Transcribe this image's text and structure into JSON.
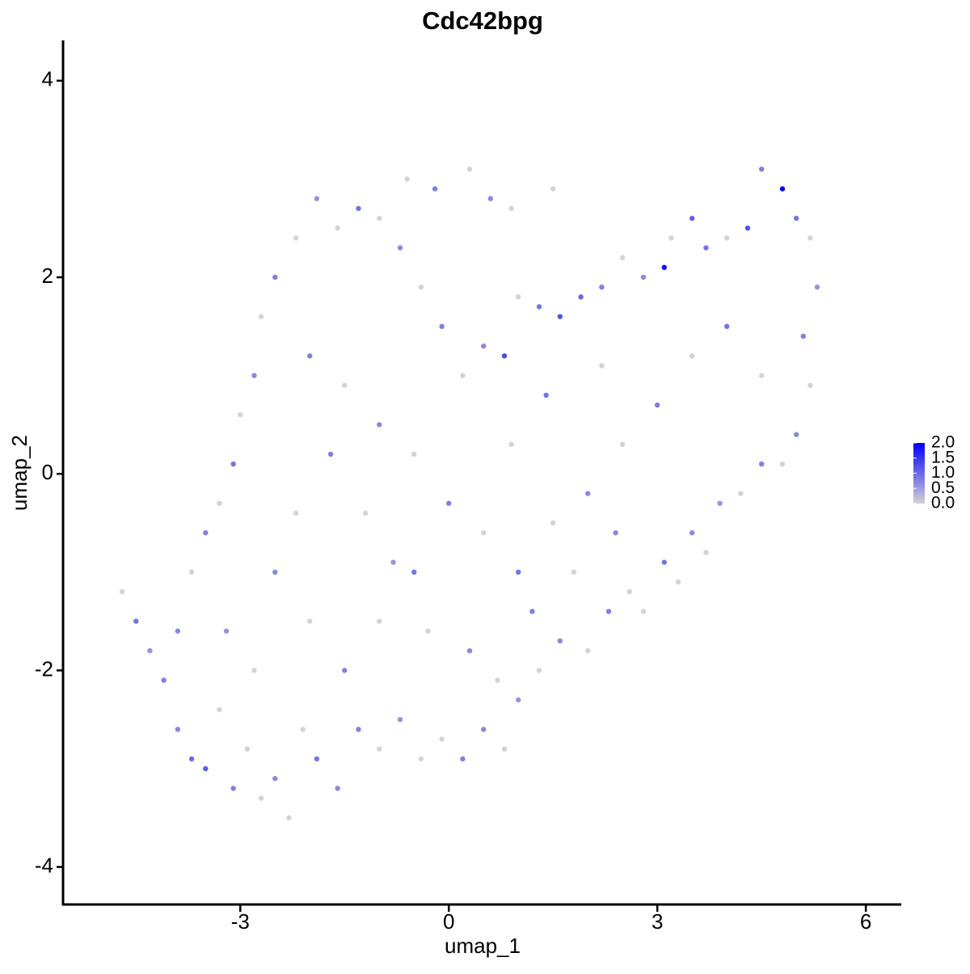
{
  "chart_data": {
    "type": "scatter",
    "title": "Cdc42bpg",
    "x_label": "umap_1",
    "y_label": "umap_2",
    "xlim": [
      -5.55,
      6.51
    ],
    "ylim": [
      -4.39,
      4.41
    ],
    "xticks": [
      -3,
      0,
      3,
      6
    ],
    "yticks": [
      -4,
      -2,
      0,
      2,
      4
    ],
    "colorbar": {
      "lim": [
        0,
        2
      ],
      "colors": [
        "#d3d3d3",
        "#0000ff"
      ],
      "ticks": [
        {
          "value": 0,
          "label": "0.0"
        },
        {
          "value": 0.5,
          "label": "0.5"
        },
        {
          "value": 1,
          "label": "1.0"
        },
        {
          "value": 1.5,
          "label": "1.5"
        },
        {
          "value": 2,
          "label": "2.0"
        }
      ]
    },
    "series": [
      {
        "x": [
          -4.7,
          -4.5,
          -4.3,
          -4.1,
          -3.9,
          -3.7,
          -3.5,
          -3.3,
          -3.1,
          -2.9,
          -2.7,
          -2.5,
          -2.3,
          -2.1,
          -1.9,
          -1.6,
          -1.3,
          -1.0,
          -0.7,
          -0.4,
          -0.1,
          0.2,
          0.5,
          0.8,
          1.0,
          1.3,
          1.6,
          2.0,
          2.3,
          2.6,
          2.8,
          3.1,
          3.3,
          3.5,
          3.7,
          3.9,
          4.2,
          4.5,
          4.8,
          5.0,
          5.2,
          5.1,
          5.3,
          5.2,
          5.0,
          4.8,
          4.5,
          4.3,
          4.0,
          3.7,
          3.5,
          3.2,
          3.1,
          2.8,
          2.5,
          2.2,
          1.9,
          1.6,
          1.3,
          1.0,
          0.8,
          0.5,
          0.2,
          -0.1,
          -0.4,
          -0.7,
          -1.0,
          -1.3,
          -1.6,
          -1.9,
          -2.2,
          -2.5,
          -2.7,
          -2.8,
          -3.0,
          -3.1,
          -3.3,
          -3.5,
          -3.7,
          -3.9,
          -0.6,
          -0.2,
          0.3,
          0.6,
          0.9,
          1.5,
          -2.0,
          -1.5,
          -1.0,
          -0.5,
          0.0,
          0.5,
          1.0,
          1.5,
          2.0,
          2.5,
          3.0,
          3.5,
          4.0,
          4.5,
          -2.5,
          -2.0,
          -1.5,
          -1.0,
          -0.5,
          -2.8,
          -3.2,
          -2.2,
          -1.7,
          -1.2,
          -0.8,
          -0.3,
          0.3,
          0.7,
          1.2,
          1.8,
          2.4,
          0.9,
          1.4,
          2.2
        ],
        "values": [
          -1.2,
          -1.5,
          -1.8,
          -2.1,
          -2.6,
          -2.9,
          -3.0,
          -2.4,
          -3.2,
          -2.8,
          -3.3,
          -3.1,
          -3.5,
          -2.6,
          -2.9,
          -3.2,
          -2.6,
          -2.8,
          -2.5,
          -2.9,
          -2.7,
          -2.9,
          -2.6,
          -2.8,
          -2.3,
          -2.0,
          -1.7,
          -1.8,
          -1.4,
          -1.2,
          -1.4,
          -0.9,
          -1.1,
          -0.6,
          -0.8,
          -0.3,
          -0.2,
          0.1,
          0.1,
          0.4,
          0.9,
          1.4,
          1.9,
          2.4,
          2.6,
          2.9,
          3.1,
          2.5,
          2.4,
          2.3,
          2.6,
          2.4,
          2.1,
          2.0,
          2.2,
          1.9,
          1.8,
          1.6,
          1.7,
          1.8,
          1.2,
          1.3,
          1.0,
          1.5,
          1.9,
          2.3,
          2.6,
          2.7,
          2.5,
          2.8,
          2.4,
          2.0,
          1.6,
          1.0,
          0.6,
          0.1,
          -0.3,
          -0.6,
          -1.0,
          -1.6,
          3.0,
          2.9,
          3.1,
          2.8,
          2.7,
          2.9,
          1.2,
          0.9,
          0.5,
          0.2,
          -0.3,
          -0.6,
          -1.0,
          -0.5,
          -0.2,
          0.3,
          0.7,
          1.2,
          1.5,
          1.0,
          -1.0,
          -1.5,
          -2.0,
          -1.5,
          -1.0,
          -2.0,
          -1.6,
          -0.4,
          0.2,
          -0.4,
          -0.9,
          -1.6,
          -1.8,
          -2.1,
          -1.4,
          -1.0,
          -0.6,
          0.3,
          0.8,
          1.1
        ],
        "expression": [
          0,
          0.9,
          0.6,
          0.8,
          0.7,
          1.0,
          1.1,
          0,
          0.8,
          0,
          0,
          0.7,
          0,
          0,
          0.9,
          0.7,
          0.8,
          0,
          0.6,
          0,
          0,
          0.8,
          0.7,
          0,
          0.6,
          0,
          0.7,
          0,
          0.8,
          0,
          0,
          0.9,
          0,
          0.7,
          0,
          0.6,
          0,
          0.8,
          0,
          0.7,
          0,
          0.8,
          0.6,
          0,
          0.9,
          2.0,
          0.8,
          1.2,
          0,
          0.9,
          1.1,
          0,
          1.9,
          0.7,
          0,
          0.8,
          1.0,
          1.2,
          0.9,
          0,
          1.3,
          0.7,
          0,
          0.8,
          0,
          0.7,
          0,
          0.9,
          0,
          0.6,
          0,
          0.8,
          0,
          0.7,
          0,
          0.9,
          0,
          0.8,
          0,
          0.7,
          0,
          0.8,
          0,
          0.7,
          0,
          0,
          0.8,
          0,
          0.7,
          0,
          0.8,
          0,
          0.9,
          0,
          0.7,
          0,
          0.8,
          0,
          0.9,
          0,
          0.7,
          0,
          0.8,
          0,
          0.9,
          0,
          0.6,
          0,
          0.8,
          0,
          0.6,
          0,
          0.7,
          0,
          0.8,
          0,
          0.7,
          0,
          0.9,
          0
        ]
      }
    ]
  }
}
